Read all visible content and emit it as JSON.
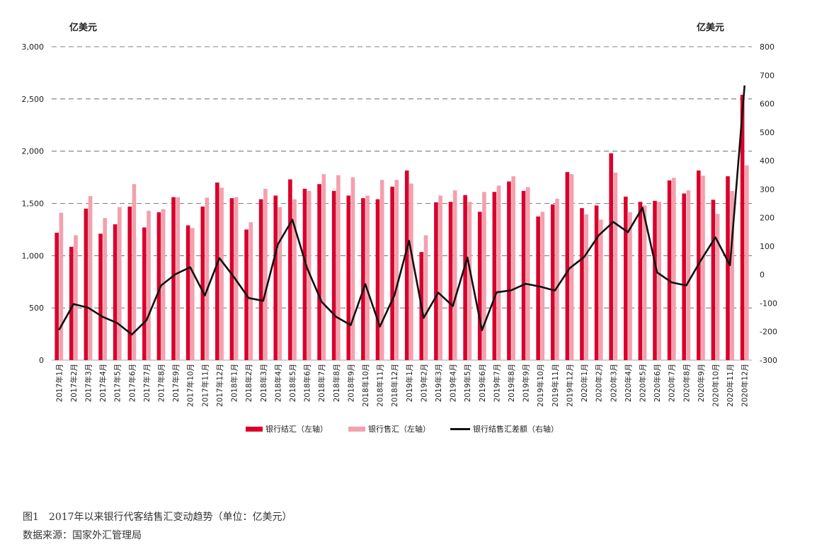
{
  "units": {
    "left": "亿美元",
    "right": "亿美元"
  },
  "legend": {
    "items": [
      {
        "label": "银行结汇（左轴）",
        "color": "#d9002c",
        "kind": "bar"
      },
      {
        "label": "银行售汇（左轴）",
        "color": "#f4a0ad",
        "kind": "bar"
      },
      {
        "label": "银行结售汇差额（右轴）",
        "color": "#111111",
        "kind": "line"
      }
    ]
  },
  "caption": {
    "title": "图1　2017年以来银行代客结售汇变动趋势（单位：亿美元）",
    "source": "数据来源：国家外汇管理局"
  },
  "chart_data": {
    "type": "bar",
    "categories": [
      "2017年1月",
      "2017年2月",
      "2017年3月",
      "2017年4月",
      "2017年5月",
      "2017年6月",
      "2017年7月",
      "2017年8月",
      "2017年9月",
      "2017年10月",
      "2017年11月",
      "2017年12月",
      "2018年1月",
      "2018年2月",
      "2018年3月",
      "2018年4月",
      "2018年5月",
      "2018年6月",
      "2018年7月",
      "2018年8月",
      "2018年9月",
      "2018年10月",
      "2018年11月",
      "2018年12月",
      "2019年1月",
      "2019年2月",
      "2019年3月",
      "2019年4月",
      "2019年5月",
      "2019年6月",
      "2019年7月",
      "2019年8月",
      "2019年9月",
      "2019年10月",
      "2019年11月",
      "2019年12月",
      "2020年1月",
      "2020年2月",
      "2020年3月",
      "2020年4月",
      "2020年5月",
      "2020年6月",
      "2020年7月",
      "2020年8月",
      "2020年9月",
      "2020年10月",
      "2020年11月",
      "2020年12月"
    ],
    "left_axis": {
      "min": 0,
      "max": 3000,
      "ticks": [
        "0",
        "500",
        "1,000",
        "1,500",
        "2,000",
        "2,500",
        "3,000"
      ]
    },
    "right_axis": {
      "min": -300,
      "max": 800,
      "ticks": [
        "-300",
        "-200",
        "-100",
        "0",
        "100",
        "200",
        "300",
        "400",
        "500",
        "600",
        "700",
        "800"
      ]
    },
    "grid": "horizontal-dashed",
    "legend_position": "bottom",
    "series": [
      {
        "name": "银行结汇（左轴）",
        "type": "bar",
        "axis": "left",
        "color": "#d9002c",
        "values": [
          1220,
          1085,
          1450,
          1210,
          1300,
          1470,
          1270,
          1415,
          1560,
          1290,
          1470,
          1700,
          1550,
          1250,
          1540,
          1575,
          1730,
          1640,
          1685,
          1620,
          1575,
          1550,
          1540,
          1660,
          1815,
          1035,
          1510,
          1515,
          1580,
          1420,
          1610,
          1710,
          1620,
          1375,
          1490,
          1800,
          1455,
          1480,
          1980,
          1565,
          1515,
          1525,
          1720,
          1595,
          1815,
          1535,
          1760,
          2540
        ]
      },
      {
        "name": "银行售汇（左轴）",
        "type": "bar",
        "axis": "left",
        "color": "#f4a0ad",
        "values": [
          1410,
          1195,
          1570,
          1360,
          1465,
          1685,
          1430,
          1445,
          1560,
          1265,
          1555,
          1650,
          1560,
          1320,
          1640,
          1465,
          1540,
          1620,
          1780,
          1770,
          1750,
          1575,
          1725,
          1725,
          1690,
          1195,
          1575,
          1625,
          1515,
          1610,
          1670,
          1760,
          1655,
          1420,
          1545,
          1780,
          1395,
          1345,
          1795,
          1415,
          1480,
          1515,
          1745,
          1625,
          1765,
          1400,
          1620,
          1865
        ]
      },
      {
        "name": "银行结售汇差额（右轴）",
        "type": "line",
        "axis": "right",
        "color": "#111111",
        "values": [
          -194,
          -103,
          -116,
          -148,
          -170,
          -210,
          -160,
          -38,
          2,
          26,
          -73,
          58,
          -9,
          -82,
          -92,
          106,
          193,
          24,
          -95,
          -148,
          -177,
          -33,
          -182,
          -72,
          119,
          -152,
          -63,
          -110,
          60,
          -195,
          -62,
          -55,
          -32,
          -42,
          -56,
          22,
          62,
          138,
          185,
          149,
          235,
          8,
          -27,
          -38,
          50,
          131,
          33,
          664
        ]
      }
    ]
  }
}
